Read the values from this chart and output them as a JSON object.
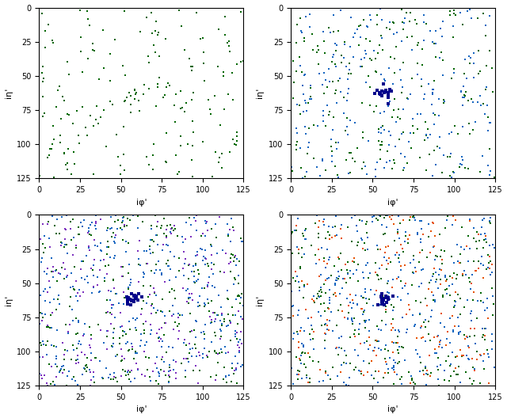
{
  "xlabel": "iφ'",
  "ylabel": "iη'",
  "xlim": [
    0,
    125
  ],
  "ylim": [
    125,
    0
  ],
  "xticks": [
    0,
    25,
    50,
    75,
    100,
    125
  ],
  "yticks": [
    0,
    25,
    50,
    75,
    100,
    125
  ],
  "seed": 42,
  "colors": {
    "green": "#006400",
    "blue": "#1565C0",
    "dark_blue": "#00008B",
    "purple": "#7B2FBE",
    "orange": "#E65100",
    "teal_blue": "#0D47A1"
  },
  "marker_size": 2,
  "cluster_marker_size": 8,
  "background_color": "#ffffff",
  "tick_fontsize": 7,
  "label_fontsize": 8,
  "figsize": [
    6.4,
    5.28
  ],
  "dpi": 100
}
